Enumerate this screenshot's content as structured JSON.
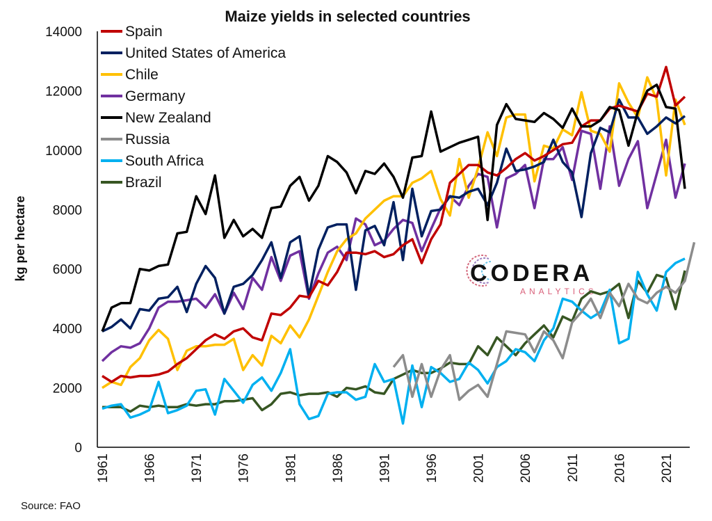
{
  "chart_data": {
    "type": "line",
    "title": "Maize yields in selected countries",
    "xlabel": "",
    "ylabel": "kg per hectare",
    "ylim": [
      0,
      14000
    ],
    "yticks": [
      0,
      2000,
      4000,
      6000,
      8000,
      10000,
      12000,
      14000
    ],
    "xlim": [
      1961,
      2023
    ],
    "xticks": [
      1961,
      1966,
      1971,
      1976,
      1981,
      1986,
      1991,
      1996,
      2001,
      2006,
      2011,
      2016,
      2021
    ],
    "grid": false,
    "legend_position": "top-left",
    "source": "Source: FAO",
    "logo": {
      "name": "CODERA",
      "sub": "ANALYTICS"
    },
    "series": [
      {
        "name": "Spain",
        "color": "#c00000",
        "start": 1961,
        "values": [
          2400,
          2200,
          2400,
          2350,
          2400,
          2400,
          2450,
          2550,
          2800,
          3000,
          3300,
          3600,
          3800,
          3650,
          3900,
          4000,
          3700,
          3600,
          4500,
          4450,
          4700,
          5100,
          5050,
          5600,
          5450,
          5900,
          6550,
          6550,
          6500,
          6600,
          6400,
          6500,
          6800,
          7000,
          6200,
          7000,
          7500,
          8900,
          9200,
          9500,
          9500,
          9250,
          9150,
          9400,
          9700,
          9900,
          9650,
          9800,
          10000,
          10200,
          10250,
          10800,
          11000,
          11000,
          11400,
          11500,
          11400,
          11300,
          11900,
          11800,
          12800,
          11500,
          11800
        ]
      },
      {
        "name": "United States of America",
        "color": "#002060",
        "start": 1961,
        "values": [
          3900,
          4050,
          4300,
          4000,
          4650,
          4600,
          5000,
          5050,
          5400,
          4550,
          5500,
          6100,
          5700,
          4500,
          5400,
          5500,
          5800,
          6300,
          6900,
          5700,
          6900,
          7100,
          5100,
          6650,
          7400,
          7500,
          7500,
          5300,
          7300,
          7450,
          6800,
          8250,
          6300,
          8700,
          7100,
          7950,
          8000,
          8450,
          8400,
          8600,
          8700,
          8150,
          8900,
          10050,
          9300,
          9350,
          9450,
          9600,
          10350,
          9600,
          9250,
          7750,
          9900,
          10750,
          10600,
          11700,
          11100,
          11100,
          10550,
          10800,
          11100,
          10900,
          11150
        ]
      },
      {
        "name": "Chile",
        "color": "#ffc000",
        "start": 1961,
        "values": [
          2000,
          2200,
          2100,
          2700,
          3000,
          3600,
          3950,
          3650,
          2600,
          3250,
          3400,
          3400,
          3450,
          3450,
          3650,
          2600,
          3100,
          2750,
          3750,
          3500,
          4100,
          3700,
          4300,
          5100,
          5900,
          6600,
          7000,
          7200,
          7700,
          8000,
          8300,
          8450,
          8450,
          8900,
          9050,
          9300,
          8350,
          7800,
          9700,
          8400,
          9400,
          10600,
          9800,
          11100,
          11200,
          11200,
          8950,
          10150,
          10050,
          10700,
          10500,
          11950,
          10650,
          10550,
          9950,
          12250,
          11600,
          11100,
          12450,
          11700,
          9150,
          11700,
          10850
        ]
      },
      {
        "name": "Germany",
        "color": "#7030a0",
        "start": 1961,
        "values": [
          2900,
          3200,
          3400,
          3350,
          3500,
          4000,
          4700,
          4900,
          4900,
          4950,
          5000,
          4700,
          5150,
          4500,
          5200,
          4650,
          5700,
          5300,
          6400,
          5600,
          6450,
          6600,
          5000,
          5850,
          6550,
          6750,
          6300,
          7700,
          7500,
          6800,
          6950,
          7350,
          7650,
          7550,
          6600,
          7350,
          8050,
          8450,
          8150,
          8800,
          9200,
          9100,
          7400,
          9050,
          9200,
          9500,
          8050,
          9700,
          9700,
          10100,
          9000,
          10650,
          10550,
          8700,
          10800,
          8800,
          9700,
          10300,
          8050,
          9200,
          10350,
          8400,
          9550
        ]
      },
      {
        "name": "New Zealand",
        "color": "#000000",
        "start": 1961,
        "values": [
          3900,
          4700,
          4850,
          4850,
          6000,
          5950,
          6100,
          6150,
          7200,
          7250,
          8450,
          7850,
          9150,
          7050,
          7650,
          7100,
          7350,
          7050,
          8050,
          8100,
          8800,
          9100,
          8300,
          8800,
          9800,
          9600,
          9250,
          8550,
          9300,
          9200,
          9550,
          9100,
          8400,
          9750,
          9800,
          11300,
          9950,
          10100,
          10250,
          10350,
          10450,
          7650,
          10850,
          11550,
          11050,
          11000,
          10950,
          11250,
          11050,
          10750,
          11400,
          10800,
          10800,
          11000,
          11450,
          11350,
          10150,
          11300,
          12000,
          12200,
          11450,
          11400,
          8700
        ]
      },
      {
        "name": "Russia",
        "color": "#8c8c8c",
        "start": 1992,
        "values": [
          2700,
          3100,
          1700,
          2800,
          1700,
          2600,
          3100,
          1600,
          1900,
          2100,
          1700,
          2800,
          3900,
          3850,
          3800,
          3200,
          3900,
          3600,
          3000,
          4200,
          4550,
          5000,
          4350,
          5200,
          4750,
          5500,
          5000,
          4850,
          5200,
          5400,
          5200,
          5600,
          6900
        ]
      },
      {
        "name": "South Africa",
        "color": "#00b0f0",
        "start": 1961,
        "values": [
          1300,
          1400,
          1450,
          1000,
          1100,
          1250,
          2200,
          1150,
          1250,
          1400,
          1900,
          1950,
          1100,
          2300,
          1900,
          1500,
          2100,
          2350,
          1900,
          2500,
          3300,
          1450,
          950,
          1050,
          1800,
          1850,
          1850,
          1600,
          1700,
          2800,
          2200,
          2300,
          800,
          2750,
          1350,
          2700,
          2500,
          2200,
          2300,
          2850,
          2600,
          2150,
          2700,
          2900,
          3300,
          3200,
          2900,
          3600,
          4000,
          5000,
          4900,
          4600,
          4350,
          4550,
          5300,
          3500,
          3650,
          5900,
          5150,
          4600,
          5900,
          6200,
          6350
        ]
      },
      {
        "name": "Brazil",
        "color": "#375623",
        "start": 1961,
        "values": [
          1350,
          1350,
          1350,
          1200,
          1400,
          1350,
          1400,
          1350,
          1350,
          1450,
          1400,
          1450,
          1450,
          1550,
          1550,
          1600,
          1650,
          1250,
          1450,
          1800,
          1850,
          1750,
          1800,
          1800,
          1850,
          1700,
          2000,
          1950,
          2050,
          1850,
          1800,
          2300,
          2450,
          2600,
          2500,
          2500,
          2650,
          2850,
          2800,
          2800,
          3400,
          3100,
          3700,
          3400,
          3100,
          3500,
          3800,
          4100,
          3700,
          4400,
          4250,
          5000,
          5250,
          5150,
          5250,
          5500,
          4350,
          5600,
          5200,
          5800,
          5700,
          4650,
          5950
        ]
      }
    ]
  }
}
